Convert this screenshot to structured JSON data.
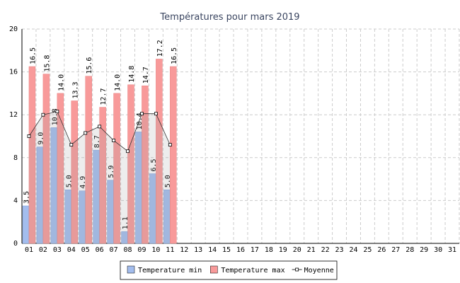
{
  "chart_data": {
    "type": "bar",
    "title": "Températures pour mars 2019",
    "categories": [
      "01",
      "02",
      "03",
      "04",
      "05",
      "06",
      "07",
      "08",
      "09",
      "10",
      "11",
      "12",
      "13",
      "14",
      "15",
      "16",
      "17",
      "18",
      "19",
      "20",
      "21",
      "22",
      "23",
      "24",
      "25",
      "26",
      "27",
      "28",
      "29",
      "30",
      "31"
    ],
    "series": [
      {
        "name": "Temperature min",
        "color": "#a3bdee",
        "type": "bar",
        "values": [
          3.5,
          9.0,
          10.8,
          5.0,
          4.9,
          8.7,
          5.9,
          1.1,
          10.4,
          6.5,
          5.0,
          null,
          null,
          null,
          null,
          null,
          null,
          null,
          null,
          null,
          null,
          null,
          null,
          null,
          null,
          null,
          null,
          null,
          null,
          null,
          null
        ],
        "value_labels": [
          "3.5",
          "9.0",
          "10.8",
          "5.0",
          "4.9",
          "8.7",
          "5.9",
          "1.1",
          "10.4",
          "6.5",
          "5.0",
          null,
          null,
          null,
          null,
          null,
          null,
          null,
          null,
          null,
          null,
          null,
          null,
          null,
          null,
          null,
          null,
          null,
          null,
          null,
          null
        ]
      },
      {
        "name": "Temperature max",
        "color": "#f89a9a",
        "type": "bar",
        "values": [
          16.5,
          15.8,
          14.0,
          13.3,
          15.6,
          12.7,
          14.0,
          14.8,
          14.7,
          17.2,
          16.5,
          null,
          null,
          null,
          null,
          null,
          null,
          null,
          null,
          null,
          null,
          null,
          null,
          null,
          null,
          null,
          null,
          null,
          null,
          null,
          null
        ],
        "value_labels": [
          "16.5",
          "15.8",
          "14.0",
          "13.3",
          "15.6",
          "12.7",
          "14.0",
          "14.8",
          "14.7",
          "17.2",
          "16.5",
          null,
          null,
          null,
          null,
          null,
          null,
          null,
          null,
          null,
          null,
          null,
          null,
          null,
          null,
          null,
          null,
          null,
          null,
          null,
          null
        ]
      },
      {
        "name": "Moyenne",
        "color": "#333333",
        "type": "line",
        "values": [
          10.0,
          12.0,
          12.3,
          9.2,
          10.3,
          10.9,
          9.6,
          8.6,
          12.1,
          12.1,
          9.2,
          null,
          null,
          null,
          null,
          null,
          null,
          null,
          null,
          null,
          null,
          null,
          null,
          null,
          null,
          null,
          null,
          null,
          null,
          null,
          null
        ]
      }
    ],
    "ylim": [
      0,
      20
    ],
    "yticks": [
      0,
      4,
      8,
      12,
      16,
      20
    ],
    "grid": true,
    "legend": "bottom"
  }
}
